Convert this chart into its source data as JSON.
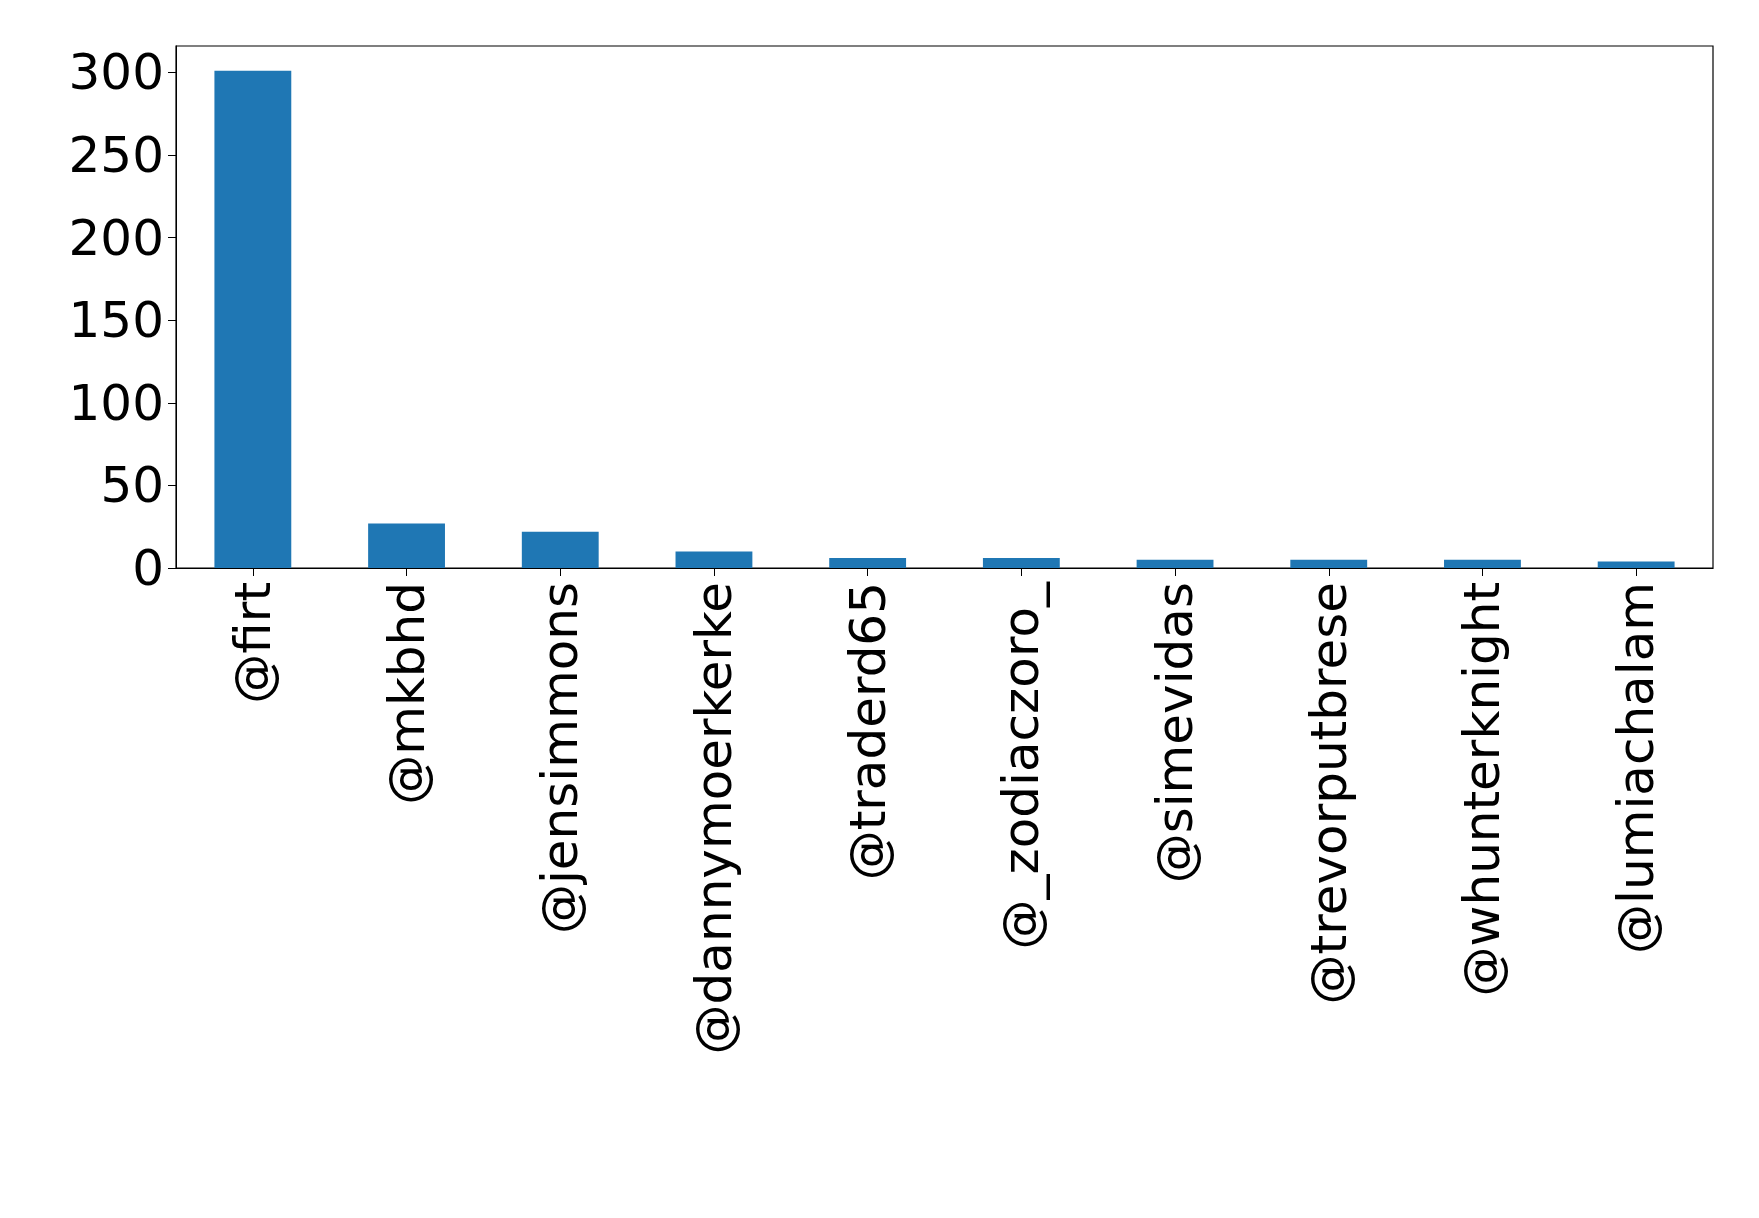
{
  "chart_data": {
    "type": "bar",
    "categories": [
      "@firt",
      "@mkbhd",
      "@jensimmons",
      "@dannymoerkerke",
      "@traderd65",
      "@_zodiaczoro_",
      "@simevidas",
      "@trevorputbrese",
      "@whunterknight",
      "@lumiachalam"
    ],
    "values": [
      301,
      27,
      22,
      10,
      6,
      6,
      5,
      5,
      5,
      4
    ],
    "color": "#1f77b4",
    "ylim": [
      0,
      316
    ],
    "yticks": [
      0,
      50,
      100,
      150,
      200,
      250,
      300
    ],
    "grid": false
  }
}
